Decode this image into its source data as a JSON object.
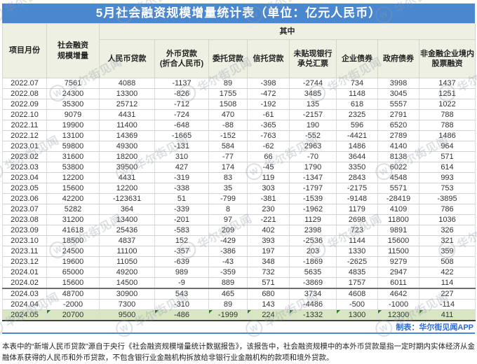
{
  "chart_data": {
    "type": "table",
    "title": "5月社会融资规模增量统计表（单位：亿元人民币）",
    "row_header": "项目月份",
    "group_header": "其中",
    "columns": [
      "社会融资规模增量",
      "人民币贷款",
      "外币贷款(折合人民币)",
      "委托贷款",
      "信托贷款",
      "未贴现银行承兑汇票",
      "企业债券",
      "政府债券",
      "非金融企业境内股票融资"
    ],
    "group_columns": [
      "人民币贷款",
      "外币贷款(折合人民币)",
      "委托贷款",
      "信托贷款",
      "未贴现银行承兑汇票",
      "企业债券",
      "政府债券",
      "非金融企业境内股票融资"
    ],
    "rows": [
      [
        "2022.07",
        7561,
        4088,
        -1137,
        89,
        -398,
        -2744,
        734,
        3998,
        1437
      ],
      [
        "2022.08",
        24300,
        13300,
        -826,
        1755,
        -472,
        3485,
        1148,
        3045,
        1251
      ],
      [
        "2022.09",
        35300,
        25712,
        -712,
        1508,
        -192,
        135,
        618,
        5557,
        1022
      ],
      [
        "2022.10",
        9079,
        4431,
        -724,
        470,
        -61,
        -2157,
        2325,
        2791,
        788
      ],
      [
        "2022.11",
        19900,
        11400,
        -648,
        -88,
        -365,
        190,
        596,
        6520,
        788
      ],
      [
        "2022.12",
        13100,
        14369,
        -1665,
        -152,
        -763,
        -552,
        -4421,
        2789,
        1486
      ],
      [
        "2023.01",
        59800,
        49300,
        -131,
        584,
        -62,
        2963,
        1486,
        4140,
        964
      ],
      [
        "2023.02",
        31600,
        18200,
        310,
        -77,
        66,
        -70,
        3644,
        8138,
        571
      ],
      [
        "2023.03",
        53800,
        39500,
        427,
        174,
        -45,
        1790,
        3350,
        6022,
        614
      ],
      [
        "2023.04",
        12200,
        4431,
        -319,
        83,
        119,
        -1347,
        2843,
        4548,
        993
      ],
      [
        "2023.05",
        15600,
        12200,
        -338,
        35,
        303,
        -1797,
        -2175,
        5571,
        753
      ],
      [
        "2023.06",
        42200,
        -123631,
        51,
        -799,
        -381,
        -1539,
        -9148,
        -28419,
        -3895
      ],
      [
        "2023.07",
        5282,
        364,
        -339,
        8,
        230,
        -1962,
        1179,
        4109,
        786
      ],
      [
        "2023.08",
        31200,
        13400,
        -201,
        97,
        -221,
        1129,
        2698,
        11800,
        1036
      ],
      [
        "2023.09",
        41618,
        25436,
        -583,
        209,
        402,
        2398,
        723,
        9891,
        326
      ],
      [
        "2023.10",
        18500,
        4837,
        152,
        -429,
        393,
        -2536,
        1144,
        15600,
        321
      ],
      [
        "2023.11",
        24500,
        11100,
        -357,
        -386,
        197,
        203,
        1330,
        11500,
        359
      ],
      [
        "2023.12",
        19600,
        11050,
        -639,
        -43,
        348,
        -1869,
        -2625,
        9279,
        508
      ],
      [
        "2024.01",
        65000,
        49200,
        989,
        -359,
        732,
        5635,
        4835,
        2947,
        422
      ],
      [
        "2024.02",
        15600,
        14500,
        -9,
        889,
        571,
        -3869,
        1757,
        6011,
        114
      ],
      [
        "2024.03",
        48700,
        30900,
        543,
        465,
        680,
        3734,
        4608,
        4642,
        227
      ],
      [
        "2024.04",
        -2000,
        7300,
        -310,
        89,
        143,
        -4486,
        -500,
        -1000,
        -114
      ],
      [
        "2024.05",
        20700,
        9500,
        -486,
        -1999,
        224,
        -1332,
        1300,
        12300,
        411
      ]
    ]
  },
  "ui": {
    "row_header_display": "项目月份",
    "total_header_display": "社会融资\n规模增量",
    "group_header_display": "其中",
    "sub_headers_display": [
      "人民币贷款",
      "外币贷款\n(折合人民币)",
      "委托贷款",
      "信托贷款",
      "未贴现银行\n承兑汇票",
      "企业债券",
      "政府债券",
      "非金融企业境内\n股票融资"
    ],
    "highlight_month": "2024.05",
    "divider_after_month": "2024.02",
    "flagged_value_indices": [
      0,
      2,
      3,
      4,
      5,
      6,
      7,
      8
    ],
    "credit": "制表：华尔街见闻APP",
    "footnote": "本表中的“新增人民币贷款”源自于央行《社会融资规模增量统计数据报告》，该报告中，社会融资规模中的本外币贷款是指一定时期内实体经济从金融体系获得的人民币和外币贷款，不包含银行业金融机构拆放给非银行业金融机构的款项和境外贷款。"
  },
  "watermark": {
    "text": "华尔街见闻",
    "logo_letter": "W"
  },
  "colors": {
    "title_bar_blue": "#4b87ce",
    "header_bg": "#eef0e3",
    "highlight_row_green": "#d9e6c3",
    "flag_triangle_green": "#2f7d1f",
    "credit_text_blue": "#2a6bd2"
  }
}
